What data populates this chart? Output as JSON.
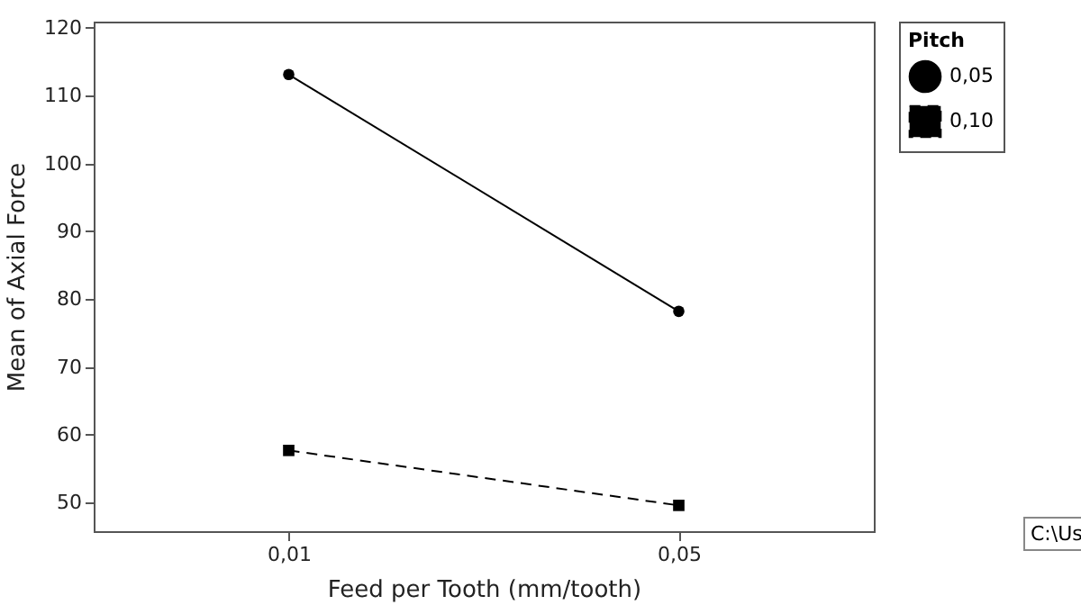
{
  "chart_data": {
    "type": "line",
    "xlabel": "Feed per Tooth (mm/tooth)",
    "ylabel": "Mean of Axial Force",
    "legend_title": "Pitch",
    "legend": "right",
    "categories": [
      "0,01",
      "0,05"
    ],
    "series": [
      {
        "name": "0,05",
        "color": "#000000",
        "values": [
          113.1,
          78.2
        ],
        "marker": "circle",
        "line_style": "solid"
      },
      {
        "name": "0,10",
        "color": "#000000",
        "values": [
          57.7,
          49.6
        ],
        "marker": "square",
        "line_style": "dashed"
      }
    ],
    "ylim": [
      45.8,
      120.9
    ],
    "yticks": [
      50,
      60,
      70,
      80,
      90,
      100,
      110,
      120
    ],
    "grid": false,
    "annotations": [
      "C:\\Us"
    ]
  }
}
